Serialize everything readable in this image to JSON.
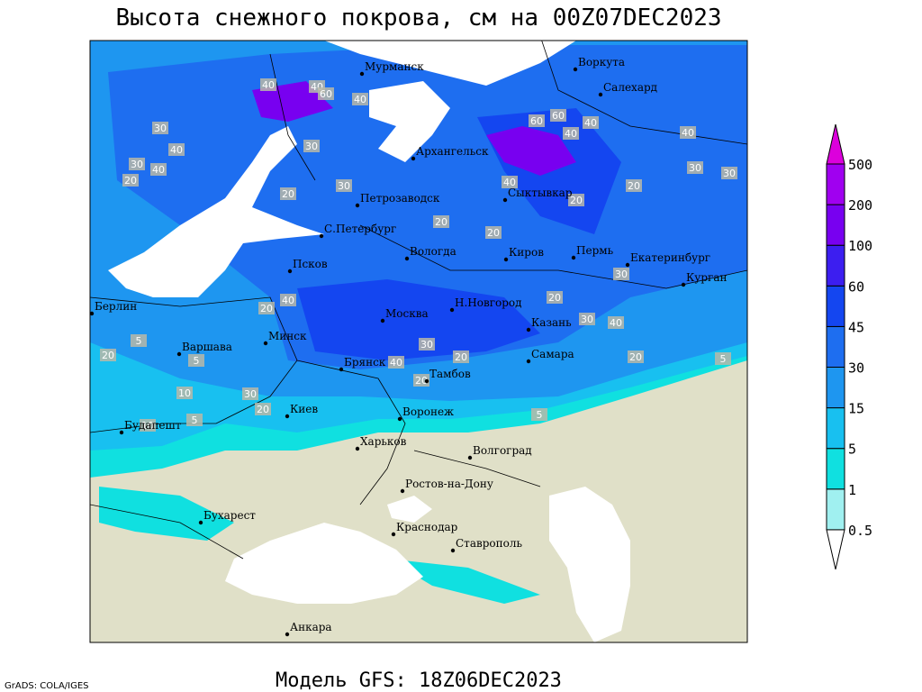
{
  "title": "Высота снежного покрова, см на 00Z07DEC2023",
  "subtitle": "Модель GFS: 18Z06DEC2023",
  "credit": "GrADS: COLA/IGES",
  "cities": [
    "Мурманск",
    "Воркута",
    "Салехард",
    "Архангельск",
    "Петрозаводск",
    "Сыктывкар",
    "С.Петербург",
    "Вологда",
    "Киров",
    "Пермь",
    "Екатеринбург",
    "Курган",
    "Псков",
    "Берлин",
    "Н.Новгород",
    "Москва",
    "Казань",
    "Минск",
    "Варшава",
    "Самара",
    "Брянск",
    "Тамбов",
    "Киев",
    "Воронеж",
    "Будапешт",
    "Харьков",
    "Волгоград",
    "Ростов-на-Дону",
    "Бухарест",
    "Краснодар",
    "Ставрополь",
    "Анкара"
  ],
  "contour_labels": [
    "40",
    "40",
    "60",
    "40",
    "60",
    "60",
    "40",
    "40",
    "30",
    "40",
    "30",
    "40",
    "20",
    "30",
    "20",
    "40",
    "20",
    "30",
    "20",
    "20",
    "20",
    "30",
    "30",
    "40",
    "30",
    "20",
    "40",
    "30",
    "40",
    "20",
    "40",
    "30",
    "20",
    "20",
    "5",
    "5",
    "20",
    "10",
    "30",
    "20",
    "5",
    "5",
    "20",
    "5",
    "10"
  ],
  "legend": {
    "levels": [
      0.5,
      1,
      5,
      15,
      30,
      45,
      60,
      100,
      200,
      500
    ],
    "colors": [
      "#ffffff",
      "#a0f0f0",
      "#10e0e0",
      "#18c0f0",
      "#1e96f0",
      "#1e6ef0",
      "#1446f0",
      "#3c1ef0",
      "#7800f0",
      "#a000f0",
      "#dc00dc"
    ]
  }
}
